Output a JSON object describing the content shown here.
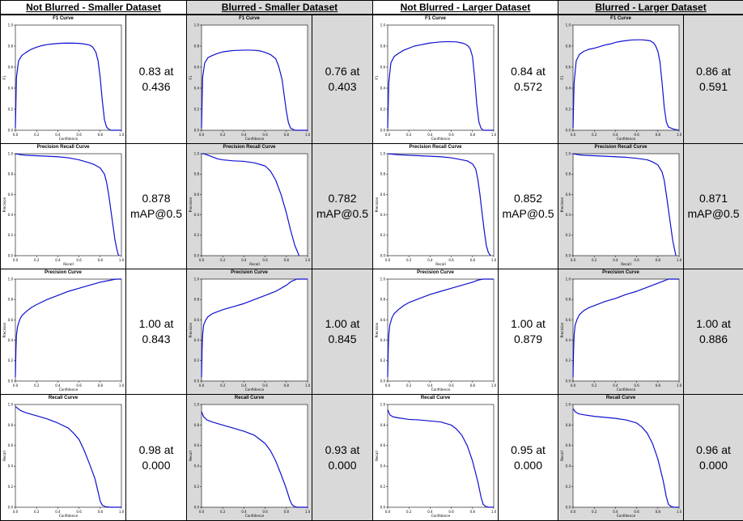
{
  "headers": [
    "Not Blurred - Smaller Dataset",
    "Blurred - Smaller Dataset",
    "Not Blurred - Larger Dataset",
    "Blurred - Larger Dataset"
  ],
  "colors": {
    "curve": "#1010d0",
    "shade": "#d9d9d9",
    "border": "#000000"
  },
  "chart_data": [
    {
      "type": "line",
      "title": "F1 Curve",
      "xlabel": "Confidence",
      "ylabel": "F1",
      "xlim": [
        0,
        1
      ],
      "ylim": [
        0,
        1
      ],
      "x": [
        0,
        0.01,
        0.03,
        0.06,
        0.1,
        0.15,
        0.2,
        0.25,
        0.3,
        0.35,
        0.4,
        0.45,
        0.5,
        0.55,
        0.6,
        0.65,
        0.7,
        0.73,
        0.76,
        0.78,
        0.8,
        0.82,
        0.84,
        0.86,
        0.88,
        0.9,
        0.95,
        1.0
      ],
      "series": [
        {
          "values": [
            0.02,
            0.5,
            0.66,
            0.71,
            0.74,
            0.77,
            0.79,
            0.805,
            0.815,
            0.82,
            0.825,
            0.828,
            0.829,
            0.828,
            0.826,
            0.82,
            0.81,
            0.79,
            0.74,
            0.66,
            0.5,
            0.28,
            0.1,
            0.03,
            0.01,
            0,
            0,
            0
          ]
        }
      ],
      "summary": [
        "0.83 at",
        "0.436"
      ]
    },
    {
      "type": "line",
      "title": "F1 Curve",
      "xlabel": "Confidence",
      "ylabel": "F1",
      "xlim": [
        0,
        1
      ],
      "ylim": [
        0,
        1
      ],
      "x": [
        0,
        0.01,
        0.03,
        0.06,
        0.1,
        0.15,
        0.2,
        0.25,
        0.3,
        0.35,
        0.4,
        0.45,
        0.5,
        0.55,
        0.6,
        0.65,
        0.7,
        0.73,
        0.76,
        0.78,
        0.8,
        0.82,
        0.84,
        0.86,
        0.88,
        0.9,
        0.95,
        1.0
      ],
      "series": [
        {
          "values": [
            0.02,
            0.5,
            0.64,
            0.69,
            0.71,
            0.73,
            0.745,
            0.752,
            0.758,
            0.76,
            0.762,
            0.762,
            0.76,
            0.755,
            0.74,
            0.72,
            0.68,
            0.6,
            0.48,
            0.33,
            0.18,
            0.07,
            0.02,
            0.01,
            0,
            0,
            0,
            0
          ]
        }
      ],
      "summary": [
        "0.76 at",
        "0.403"
      ]
    },
    {
      "type": "line",
      "title": "F1 Curve",
      "xlabel": "Confidence",
      "ylabel": "F1",
      "xlim": [
        0,
        1
      ],
      "ylim": [
        0,
        1
      ],
      "x": [
        0,
        0.01,
        0.03,
        0.06,
        0.1,
        0.15,
        0.2,
        0.25,
        0.3,
        0.35,
        0.4,
        0.45,
        0.5,
        0.55,
        0.6,
        0.65,
        0.7,
        0.73,
        0.76,
        0.78,
        0.8,
        0.82,
        0.84,
        0.86,
        0.88,
        0.9,
        0.95,
        1.0
      ],
      "series": [
        {
          "values": [
            0.02,
            0.45,
            0.64,
            0.7,
            0.73,
            0.76,
            0.78,
            0.8,
            0.81,
            0.82,
            0.83,
            0.835,
            0.84,
            0.842,
            0.842,
            0.84,
            0.83,
            0.82,
            0.8,
            0.77,
            0.7,
            0.5,
            0.25,
            0.08,
            0.02,
            0,
            0,
            0
          ]
        }
      ],
      "summary": [
        "0.84 at",
        "0.572"
      ]
    },
    {
      "type": "line",
      "title": "F1 Curve",
      "xlabel": "Confidence",
      "ylabel": "F1",
      "xlim": [
        0,
        1
      ],
      "ylim": [
        0,
        1
      ],
      "x": [
        0,
        0.01,
        0.03,
        0.06,
        0.1,
        0.15,
        0.2,
        0.25,
        0.3,
        0.35,
        0.4,
        0.45,
        0.5,
        0.55,
        0.6,
        0.65,
        0.7,
        0.73,
        0.76,
        0.78,
        0.8,
        0.82,
        0.84,
        0.86,
        0.88,
        0.9,
        0.95,
        1.0
      ],
      "series": [
        {
          "values": [
            0.02,
            0.45,
            0.66,
            0.72,
            0.75,
            0.77,
            0.78,
            0.795,
            0.81,
            0.82,
            0.835,
            0.845,
            0.852,
            0.858,
            0.86,
            0.86,
            0.855,
            0.85,
            0.83,
            0.8,
            0.75,
            0.65,
            0.45,
            0.22,
            0.08,
            0.03,
            0.01,
            0
          ]
        }
      ],
      "summary": [
        "0.86 at",
        "0.591"
      ]
    },
    {
      "type": "line",
      "title": "Precision Recall Curve",
      "xlabel": "Recall",
      "ylabel": "Precision",
      "xlim": [
        0,
        1
      ],
      "ylim": [
        0,
        1
      ],
      "x": [
        0,
        0.05,
        0.1,
        0.2,
        0.3,
        0.4,
        0.5,
        0.6,
        0.7,
        0.75,
        0.8,
        0.84,
        0.86,
        0.88,
        0.9,
        0.92,
        0.94,
        0.96,
        0.97,
        0.98
      ],
      "series": [
        {
          "values": [
            1,
            0.99,
            0.985,
            0.98,
            0.975,
            0.97,
            0.96,
            0.94,
            0.91,
            0.89,
            0.86,
            0.8,
            0.72,
            0.6,
            0.45,
            0.3,
            0.15,
            0.05,
            0.01,
            0
          ]
        }
      ],
      "summary": [
        "0.878",
        "mAP@0.5"
      ]
    },
    {
      "type": "line",
      "title": "Precision Recall Curve",
      "xlabel": "Recall",
      "ylabel": "Precision",
      "xlim": [
        0,
        1
      ],
      "ylim": [
        0,
        1
      ],
      "x": [
        0,
        0.02,
        0.05,
        0.1,
        0.15,
        0.2,
        0.25,
        0.3,
        0.4,
        0.5,
        0.6,
        0.65,
        0.7,
        0.75,
        0.8,
        0.84,
        0.88,
        0.92
      ],
      "series": [
        {
          "values": [
            1,
            1,
            0.99,
            0.97,
            0.95,
            0.94,
            0.935,
            0.93,
            0.925,
            0.91,
            0.88,
            0.83,
            0.74,
            0.6,
            0.42,
            0.25,
            0.1,
            0
          ]
        }
      ],
      "summary": [
        "0.782",
        "mAP@0.5"
      ]
    },
    {
      "type": "line",
      "title": "Precision Recall Curve",
      "xlabel": "Recall",
      "ylabel": "Precision",
      "xlim": [
        0,
        1
      ],
      "ylim": [
        0,
        1
      ],
      "x": [
        0,
        0.05,
        0.1,
        0.2,
        0.3,
        0.4,
        0.5,
        0.6,
        0.7,
        0.75,
        0.8,
        0.83,
        0.85,
        0.87,
        0.89,
        0.91,
        0.93,
        0.95,
        0.97
      ],
      "series": [
        {
          "values": [
            1,
            0.995,
            0.99,
            0.985,
            0.98,
            0.975,
            0.97,
            0.96,
            0.94,
            0.93,
            0.9,
            0.85,
            0.75,
            0.6,
            0.42,
            0.25,
            0.1,
            0.03,
            0
          ]
        }
      ],
      "summary": [
        "0.852",
        "mAP@0.5"
      ]
    },
    {
      "type": "line",
      "title": "Precision Recall Curve",
      "xlabel": "Recall",
      "ylabel": "Precision",
      "xlim": [
        0,
        1
      ],
      "ylim": [
        0,
        1
      ],
      "x": [
        0,
        0.05,
        0.1,
        0.2,
        0.3,
        0.4,
        0.5,
        0.6,
        0.7,
        0.75,
        0.8,
        0.84,
        0.86,
        0.88,
        0.9,
        0.92,
        0.94,
        0.96,
        0.97
      ],
      "series": [
        {
          "values": [
            1,
            0.99,
            0.985,
            0.98,
            0.975,
            0.97,
            0.965,
            0.955,
            0.94,
            0.92,
            0.89,
            0.82,
            0.74,
            0.6,
            0.45,
            0.3,
            0.15,
            0.05,
            0
          ]
        }
      ],
      "summary": [
        "0.871",
        "mAP@0.5"
      ]
    },
    {
      "type": "line",
      "title": "Precision Curve",
      "xlabel": "Confidence",
      "ylabel": "Precision",
      "xlim": [
        0,
        1
      ],
      "ylim": [
        0,
        1
      ],
      "x": [
        0,
        0.005,
        0.01,
        0.02,
        0.04,
        0.06,
        0.1,
        0.15,
        0.2,
        0.3,
        0.4,
        0.5,
        0.6,
        0.7,
        0.8,
        0.85,
        0.9,
        0.95,
        1.0
      ],
      "series": [
        {
          "values": [
            0.04,
            0.3,
            0.45,
            0.53,
            0.6,
            0.64,
            0.68,
            0.72,
            0.75,
            0.8,
            0.84,
            0.88,
            0.91,
            0.94,
            0.97,
            0.98,
            0.99,
            1.0,
            1.0
          ]
        }
      ],
      "summary": [
        "1.00 at",
        "0.843"
      ]
    },
    {
      "type": "line",
      "title": "Precision Curve",
      "xlabel": "Confidence",
      "ylabel": "Precision",
      "xlim": [
        0,
        1
      ],
      "ylim": [
        0,
        1
      ],
      "x": [
        0,
        0.005,
        0.01,
        0.02,
        0.04,
        0.06,
        0.1,
        0.15,
        0.2,
        0.3,
        0.4,
        0.5,
        0.6,
        0.7,
        0.8,
        0.85,
        0.9,
        0.95,
        1.0
      ],
      "series": [
        {
          "values": [
            0.04,
            0.3,
            0.45,
            0.55,
            0.6,
            0.63,
            0.66,
            0.68,
            0.7,
            0.73,
            0.76,
            0.8,
            0.84,
            0.88,
            0.94,
            0.98,
            1.0,
            1.0,
            1.0
          ]
        }
      ],
      "summary": [
        "1.00 at",
        "0.845"
      ]
    },
    {
      "type": "line",
      "title": "Precision Curve",
      "xlabel": "Confidence",
      "ylabel": "Precision",
      "xlim": [
        0,
        1
      ],
      "ylim": [
        0,
        1
      ],
      "x": [
        0,
        0.005,
        0.01,
        0.02,
        0.04,
        0.06,
        0.1,
        0.15,
        0.2,
        0.3,
        0.4,
        0.5,
        0.6,
        0.7,
        0.8,
        0.85,
        0.9,
        0.95,
        1.0
      ],
      "series": [
        {
          "values": [
            0.04,
            0.3,
            0.45,
            0.55,
            0.62,
            0.66,
            0.7,
            0.74,
            0.77,
            0.81,
            0.85,
            0.88,
            0.91,
            0.94,
            0.97,
            0.99,
            1.0,
            1.0,
            1.0
          ]
        }
      ],
      "summary": [
        "1.00 at",
        "0.879"
      ]
    },
    {
      "type": "line",
      "title": "Precision Curve",
      "xlabel": "Confidence",
      "ylabel": "Precision",
      "xlim": [
        0,
        1
      ],
      "ylim": [
        0,
        1
      ],
      "x": [
        0,
        0.005,
        0.01,
        0.02,
        0.04,
        0.06,
        0.1,
        0.15,
        0.2,
        0.3,
        0.4,
        0.5,
        0.6,
        0.7,
        0.8,
        0.85,
        0.9,
        0.95,
        1.0
      ],
      "series": [
        {
          "values": [
            0.04,
            0.3,
            0.45,
            0.55,
            0.61,
            0.65,
            0.69,
            0.72,
            0.74,
            0.78,
            0.81,
            0.85,
            0.88,
            0.92,
            0.96,
            0.98,
            1.0,
            1.0,
            1.0
          ]
        }
      ],
      "summary": [
        "1.00 at",
        "0.886"
      ]
    },
    {
      "type": "line",
      "title": "Recall Curve",
      "xlabel": "Confidence",
      "ylabel": "Recall",
      "xlim": [
        0,
        1
      ],
      "ylim": [
        0,
        1
      ],
      "x": [
        0,
        0.05,
        0.1,
        0.2,
        0.3,
        0.4,
        0.5,
        0.55,
        0.6,
        0.65,
        0.7,
        0.75,
        0.78,
        0.8,
        0.82,
        0.85,
        0.9,
        0.95,
        1.0
      ],
      "series": [
        {
          "values": [
            0.98,
            0.94,
            0.92,
            0.89,
            0.86,
            0.82,
            0.77,
            0.72,
            0.66,
            0.55,
            0.42,
            0.28,
            0.15,
            0.06,
            0.02,
            0.005,
            0,
            0,
            0
          ]
        }
      ],
      "summary": [
        "0.98 at",
        "0.000"
      ]
    },
    {
      "type": "line",
      "title": "Recall Curve",
      "xlabel": "Confidence",
      "ylabel": "Recall",
      "xlim": [
        0,
        1
      ],
      "ylim": [
        0,
        1
      ],
      "x": [
        0,
        0.02,
        0.05,
        0.1,
        0.2,
        0.3,
        0.4,
        0.5,
        0.6,
        0.65,
        0.7,
        0.75,
        0.8,
        0.83,
        0.85,
        0.87,
        0.9,
        0.95,
        1.0
      ],
      "series": [
        {
          "values": [
            0.93,
            0.88,
            0.85,
            0.83,
            0.8,
            0.77,
            0.74,
            0.7,
            0.62,
            0.55,
            0.45,
            0.32,
            0.18,
            0.08,
            0.03,
            0.01,
            0,
            0,
            0
          ]
        }
      ],
      "summary": [
        "0.93 at",
        "0.000"
      ]
    },
    {
      "type": "line",
      "title": "Recall Curve",
      "xlabel": "Confidence",
      "ylabel": "Recall",
      "xlim": [
        0,
        1
      ],
      "ylim": [
        0,
        1
      ],
      "x": [
        0,
        0.02,
        0.05,
        0.1,
        0.2,
        0.3,
        0.4,
        0.5,
        0.6,
        0.65,
        0.7,
        0.75,
        0.8,
        0.85,
        0.88,
        0.9,
        0.92,
        0.95,
        1.0
      ],
      "series": [
        {
          "values": [
            0.95,
            0.9,
            0.88,
            0.87,
            0.855,
            0.85,
            0.84,
            0.83,
            0.8,
            0.76,
            0.7,
            0.6,
            0.45,
            0.25,
            0.1,
            0.03,
            0.01,
            0,
            0
          ]
        }
      ],
      "summary": [
        "0.95 at",
        "0.000"
      ]
    },
    {
      "type": "line",
      "title": "Recall Curve",
      "xlabel": "Confidence",
      "ylabel": "Recall",
      "xlim": [
        0,
        1
      ],
      "ylim": [
        0,
        1
      ],
      "x": [
        0,
        0.02,
        0.05,
        0.1,
        0.2,
        0.3,
        0.4,
        0.5,
        0.6,
        0.65,
        0.7,
        0.75,
        0.8,
        0.85,
        0.88,
        0.9,
        0.92,
        0.95,
        1.0
      ],
      "series": [
        {
          "values": [
            0.96,
            0.93,
            0.91,
            0.9,
            0.885,
            0.875,
            0.865,
            0.85,
            0.82,
            0.78,
            0.72,
            0.62,
            0.47,
            0.26,
            0.1,
            0.03,
            0.01,
            0,
            0
          ]
        }
      ],
      "summary": [
        "0.96 at",
        "0.000"
      ]
    }
  ]
}
